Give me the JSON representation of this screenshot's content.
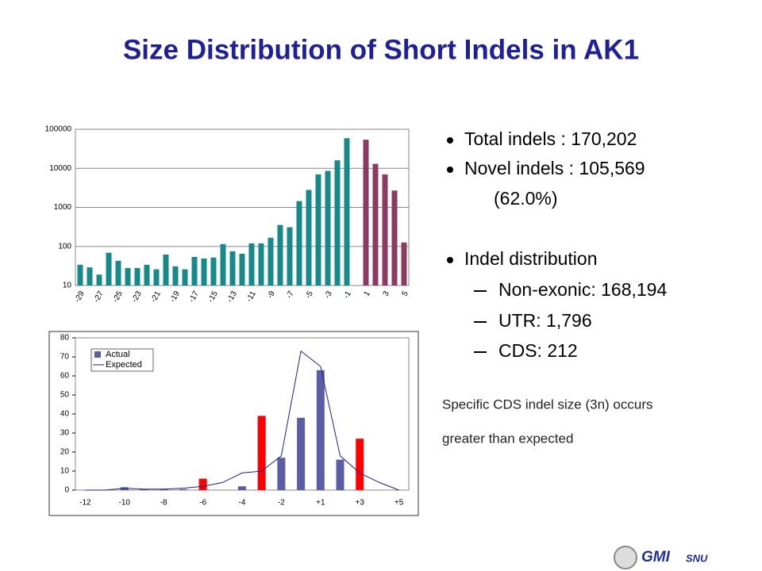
{
  "title": "Size Distribution of Short Indels in AK1",
  "bullets": [
    {
      "lines": [
        "Total indels : 170,202",
        "Novel indels : 105,569"
      ],
      "note": "(62.0%)"
    },
    {
      "lines": [
        "Indel distribution"
      ],
      "sub": [
        "Non-exonic: 168,194",
        "UTR: 1,796",
        "CDS: 212"
      ]
    }
  ],
  "remark": [
    "Specific CDS indel size (3n) occurs",
    "greater than expected"
  ],
  "logo": {
    "main": "GMI",
    "small": "SNU"
  },
  "chart_data": [
    {
      "type": "bar",
      "log_scale": true,
      "categories": [
        "-29",
        null,
        "-27",
        null,
        "-25",
        null,
        "-23",
        null,
        "-21",
        null,
        "-19",
        null,
        "-17",
        null,
        "-15",
        null,
        "-13",
        null,
        "-11",
        null,
        "-9",
        null,
        "-7",
        null,
        "-5",
        null,
        "-3",
        null,
        "-1",
        null,
        "1",
        null,
        "3",
        null,
        "5"
      ],
      "values": [
        34,
        29,
        19,
        69,
        43,
        28,
        28,
        34,
        26,
        62,
        31,
        26,
        54,
        49,
        52,
        115,
        75,
        65,
        120,
        120,
        167,
        355,
        310,
        1450,
        2800,
        7000,
        8600,
        16000,
        59000,
        null,
        54000,
        13000,
        7000,
        2700,
        126
      ],
      "colors": [
        "#168a8a",
        "#168a8a",
        "#168a8a",
        "#168a8a",
        "#168a8a",
        "#168a8a",
        "#168a8a",
        "#168a8a",
        "#168a8a",
        "#168a8a",
        "#168a8a",
        "#168a8a",
        "#168a8a",
        "#168a8a",
        "#168a8a",
        "#168a8a",
        "#168a8a",
        "#168a8a",
        "#168a8a",
        "#168a8a",
        "#168a8a",
        "#168a8a",
        "#168a8a",
        "#168a8a",
        "#168a8a",
        "#168a8a",
        "#168a8a",
        "#168a8a",
        "#168a8a",
        "#168a8a",
        "#8c3a62",
        "#8c3a62",
        "#8c3a62",
        "#8c3a62",
        "#8c3a62"
      ],
      "ylim": [
        10,
        100000
      ],
      "yticks": [
        10,
        100,
        1000,
        10000,
        100000
      ],
      "grid": true
    },
    {
      "type": "bar",
      "legend": "upper left",
      "categories": [
        "-12",
        null,
        "-10",
        null,
        "-8",
        null,
        "-6",
        null,
        "-4",
        null,
        "-2",
        null,
        "+1",
        null,
        "+3",
        null,
        "+5"
      ],
      "series": [
        {
          "name": "Actual",
          "type": "bar",
          "values": [
            0,
            0,
            1.5,
            0.5,
            0.5,
            0.5,
            6,
            0,
            2,
            39,
            17,
            38,
            63,
            16,
            27,
            0,
            0
          ],
          "color": "#5b5ea6",
          "colors": [
            "#5b5ea6",
            "#5b5ea6",
            "#5b5ea6",
            "#5b5ea6",
            "#5b5ea6",
            "#5b5ea6",
            "#ff0000",
            "#5b5ea6",
            "#5b5ea6",
            "#ff0000",
            "#5b5ea6",
            "#5b5ea6",
            "#5b5ea6",
            "#5b5ea6",
            "#ff0000",
            "#5b5ea6",
            "#5b5ea6"
          ]
        },
        {
          "name": "Expected",
          "type": "line",
          "color": "#1f1f8f",
          "values": [
            0,
            0,
            1,
            0.5,
            0.5,
            1,
            2,
            4,
            9,
            10,
            18,
            73,
            65,
            18,
            9,
            4,
            0
          ]
        }
      ],
      "ylim": [
        0,
        80
      ],
      "yticks": [
        0,
        10,
        20,
        30,
        40,
        50,
        60,
        70,
        80
      ],
      "grid": false
    }
  ]
}
